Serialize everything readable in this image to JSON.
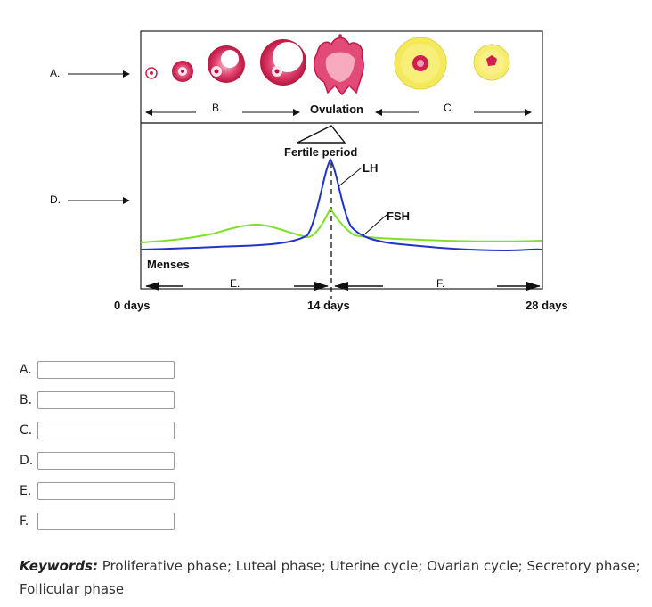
{
  "diagram": {
    "row_labels": {
      "a": "A.",
      "d": "D."
    },
    "ovary_labels": {
      "b": "B.",
      "ovulation": "Ovulation",
      "c": "C."
    },
    "fertile_period": "Fertile period",
    "hormones": {
      "lh": "LH",
      "fsh": "FSH"
    },
    "menses": "Menses",
    "uterine_labels": {
      "e": "E.",
      "f": "F."
    },
    "days": {
      "start": "0 days",
      "mid": "14 days",
      "end": "28 days"
    },
    "colors": {
      "lh": "#1f33c8",
      "fsh": "#7fe02a",
      "follicle": "#d11f4f",
      "corpus_luteum": "#f4e95a"
    },
    "icons": [
      "follicle-icon",
      "corpus-luteum-icon"
    ]
  },
  "answers": [
    {
      "letter": "A.",
      "value": ""
    },
    {
      "letter": "B.",
      "value": ""
    },
    {
      "letter": "C.",
      "value": ""
    },
    {
      "letter": "D.",
      "value": ""
    },
    {
      "letter": "E.",
      "value": ""
    },
    {
      "letter": "F.",
      "value": ""
    }
  ],
  "keywords": {
    "label": "Keywords:",
    "text": " Proliferative phase; Luteal phase; Uterine cycle; Ovarian cycle; Secretory phase; Follicular phase"
  }
}
